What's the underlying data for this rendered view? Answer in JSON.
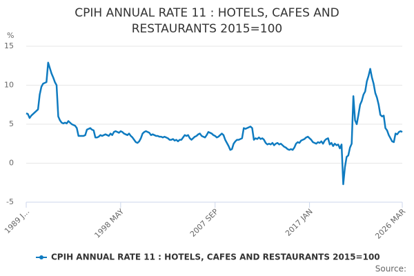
{
  "chart_data": {
    "type": "line",
    "title": "CPIH ANNUAL RATE 11 : HOTELS, CAFES AND RESTAURANTS 2015=100",
    "y_label": "%",
    "source": "Source:",
    "categories": [
      "1989 J...",
      null,
      null,
      null,
      null,
      null,
      null,
      null,
      null,
      null,
      null,
      null,
      null,
      null,
      null,
      null,
      null,
      null,
      null,
      null,
      null,
      null,
      null,
      null,
      null,
      null,
      null,
      null,
      null,
      null,
      null,
      null,
      null,
      null,
      null,
      null,
      null,
      null,
      null,
      null,
      null,
      null,
      null,
      null,
      null,
      null,
      null,
      null,
      null,
      null,
      null,
      null,
      null,
      null,
      null,
      null,
      "1998 MAY",
      null,
      null,
      null,
      null,
      null,
      null,
      null,
      null,
      null,
      null,
      null,
      null,
      null,
      null,
      null,
      null,
      null,
      null,
      null,
      null,
      null,
      null,
      null,
      null,
      null,
      null,
      null,
      null,
      null,
      null,
      null,
      null,
      null,
      null,
      null,
      null,
      null,
      null,
      null,
      null,
      null,
      null,
      null,
      null,
      null,
      null,
      null,
      null,
      null,
      null,
      null,
      null,
      null,
      null,
      null,
      "2007 SEP",
      null,
      null,
      null,
      null,
      null,
      null,
      null,
      null,
      null,
      null,
      null,
      null,
      null,
      null,
      null,
      null,
      null,
      null,
      null,
      null,
      null,
      null,
      null,
      null,
      null,
      null,
      null,
      null,
      null,
      null,
      null,
      null,
      null,
      null,
      null,
      null,
      null,
      null,
      null,
      null,
      null,
      null,
      null,
      null,
      null,
      null,
      null,
      null,
      null,
      null,
      null,
      null,
      null,
      null,
      null,
      "2017 JAN",
      null,
      null,
      null,
      null,
      null,
      null,
      null,
      null,
      null,
      null,
      null,
      null,
      null,
      null,
      null,
      null,
      null,
      null,
      null,
      null,
      null,
      null,
      null,
      null,
      null,
      null,
      null,
      null,
      null,
      null,
      null,
      null,
      null,
      null,
      null,
      null,
      null,
      null,
      null,
      null,
      null,
      null,
      null,
      null,
      null,
      null,
      null,
      null,
      null,
      null,
      null,
      null,
      null,
      null,
      "2026 MAR"
    ],
    "series": [
      {
        "name": "CPIH ANNUAL RATE 11 : HOTELS, CAFES AND RESTAURANTS 2015=100",
        "color": "#0f7bc0",
        "values": [
          6.4,
          6.3,
          5.8,
          6.1,
          6.3,
          6.5,
          6.7,
          6.9,
          8.8,
          9.8,
          10.2,
          10.3,
          10.4,
          12.9,
          12.2,
          11.5,
          11.0,
          10.4,
          10.0,
          6.0,
          5.5,
          5.2,
          5.1,
          5.2,
          5.1,
          5.4,
          5.2,
          5.0,
          4.9,
          4.8,
          4.5,
          3.5,
          3.5,
          3.5,
          3.5,
          3.6,
          4.3,
          4.4,
          4.5,
          4.3,
          4.2,
          3.3,
          3.3,
          3.4,
          3.6,
          3.5,
          3.6,
          3.7,
          3.6,
          3.5,
          3.8,
          3.6,
          4.0,
          4.1,
          4.0,
          3.9,
          4.1,
          4.0,
          3.8,
          3.7,
          3.6,
          3.8,
          3.5,
          3.3,
          3.0,
          2.7,
          2.6,
          2.8,
          3.2,
          3.8,
          4.0,
          4.1,
          4.0,
          3.9,
          3.6,
          3.7,
          3.6,
          3.5,
          3.5,
          3.4,
          3.4,
          3.3,
          3.4,
          3.3,
          3.2,
          3.0,
          3.0,
          3.1,
          2.9,
          3.0,
          2.8,
          3.0,
          3.0,
          3.3,
          3.6,
          3.5,
          3.6,
          3.2,
          3.0,
          3.2,
          3.4,
          3.5,
          3.7,
          3.8,
          3.5,
          3.4,
          3.3,
          3.6,
          4.0,
          3.9,
          3.8,
          3.6,
          3.5,
          3.3,
          3.4,
          3.6,
          3.8,
          3.6,
          3.0,
          2.6,
          2.2,
          1.7,
          1.8,
          2.5,
          2.8,
          3.0,
          3.0,
          3.1,
          3.2,
          4.5,
          4.4,
          4.5,
          4.6,
          4.7,
          4.5,
          3.0,
          3.2,
          3.1,
          3.3,
          3.1,
          3.2,
          3.0,
          2.6,
          2.4,
          2.5,
          2.4,
          2.6,
          2.3,
          2.5,
          2.6,
          2.4,
          2.5,
          2.3,
          2.1,
          2.0,
          1.8,
          1.7,
          1.8,
          1.7,
          2.0,
          2.5,
          2.7,
          2.6,
          2.9,
          3.0,
          3.1,
          3.3,
          3.4,
          3.2,
          3.0,
          2.7,
          2.6,
          2.5,
          2.7,
          2.6,
          2.8,
          2.5,
          2.9,
          3.1,
          3.2,
          2.4,
          2.6,
          2.2,
          2.5,
          2.3,
          2.4,
          1.9,
          2.4,
          -2.7,
          -0.5,
          0.8,
          1.0,
          2.0,
          2.5,
          8.6,
          5.5,
          5.0,
          6.2,
          7.5,
          8.0,
          8.8,
          9.2,
          10.5,
          11.2,
          12.1,
          11.0,
          10.2,
          9.0,
          8.4,
          7.5,
          6.2,
          6.0,
          6.1,
          4.5,
          4.2,
          3.6,
          3.2,
          2.8,
          2.7,
          3.8,
          3.7,
          4.0,
          4.1,
          4.0
        ]
      }
    ],
    "ylim": [
      -5,
      15
    ],
    "yticks": [
      -5,
      0,
      5,
      10,
      15
    ],
    "grid": true
  }
}
